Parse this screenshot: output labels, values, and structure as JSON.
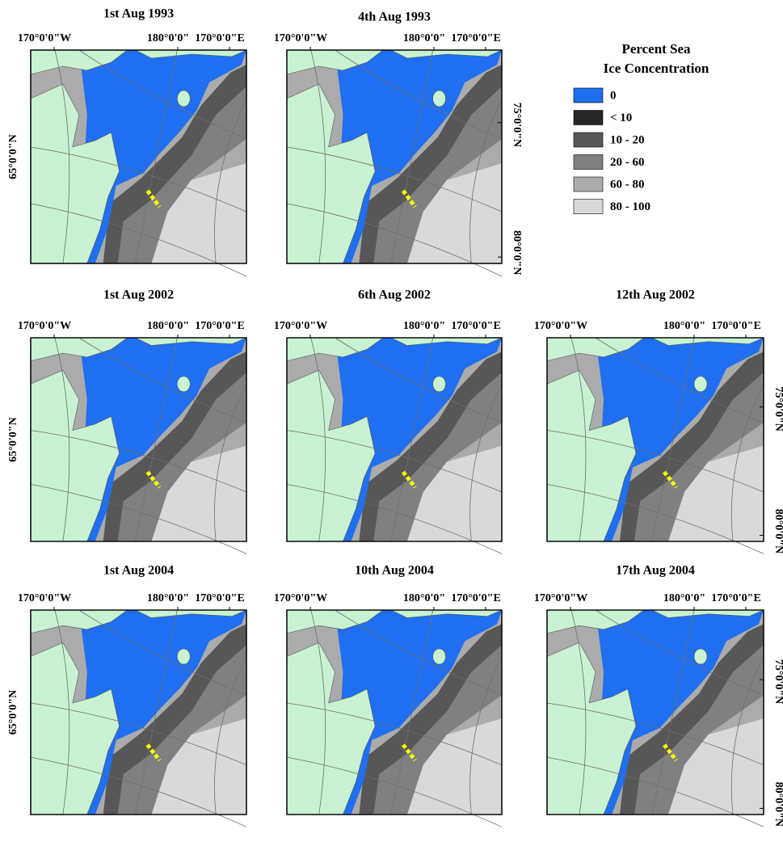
{
  "panels": [
    {
      "title": "1st Aug 1993",
      "lon_labels": [
        "170°0'0\"W",
        "180°0'0\"",
        "170°0'0\"E"
      ],
      "lat_left": [
        "65°0'0\"N"
      ],
      "lat_right": []
    },
    {
      "title": "4th Aug 1993",
      "lon_labels": [
        "170°0'0\"W",
        "180°0'0\"",
        "170°0'0\"E"
      ],
      "lat_left": [],
      "lat_right": [
        "75°0'0\"N",
        "80°0'0\"N"
      ]
    },
    {
      "title": "1st Aug 2002",
      "lon_labels": [
        "170°0'0\"W",
        "180°0'0\"",
        "170°0'0\"E"
      ],
      "lat_left": [
        "65°0'0\"N"
      ],
      "lat_right": []
    },
    {
      "title": "6th Aug 2002",
      "lon_labels": [
        "170°0'0\"W",
        "180°0'0\"",
        "170°0'0\"E"
      ],
      "lat_left": [],
      "lat_right": []
    },
    {
      "title": "12th Aug 2002",
      "lon_labels": [
        "170°0'0\"W",
        "180°0'0\"",
        "170°0'0\"E"
      ],
      "lat_left": [],
      "lat_right": [
        "75°0'0\"N",
        "80°0'0\"N"
      ]
    },
    {
      "title": "1st Aug 2004",
      "lon_labels": [
        "170°0'0\"W",
        "180°0'0\"",
        "170°0'0\"E"
      ],
      "lat_left": [
        "65°0'0\"N"
      ],
      "lat_right": []
    },
    {
      "title": "10th Aug 2004",
      "lon_labels": [
        "170°0'0\"W",
        "180°0'0\"",
        "170°0'0\"E"
      ],
      "lat_left": [],
      "lat_right": []
    },
    {
      "title": "17th Aug 2004",
      "lon_labels": [
        "170°0'0\"W",
        "180°0'0\"",
        "170°0'0\"E"
      ],
      "lat_left": [],
      "lat_right": [
        "75°0'0\"N",
        "80°0'0\"N"
      ]
    }
  ],
  "legend": {
    "title_lines": [
      "Percent Sea",
      "Ice Concentration"
    ],
    "items": [
      {
        "label": "0",
        "color": "#1f6ff0"
      },
      {
        "label": "< 10",
        "color": "#262626"
      },
      {
        "label": "10 - 20",
        "color": "#575757"
      },
      {
        "label": "20 - 60",
        "color": "#808080"
      },
      {
        "label": "60 - 80",
        "color": "#ababab"
      },
      {
        "label": "80 - 100",
        "color": "#d9d9d9"
      }
    ]
  }
}
